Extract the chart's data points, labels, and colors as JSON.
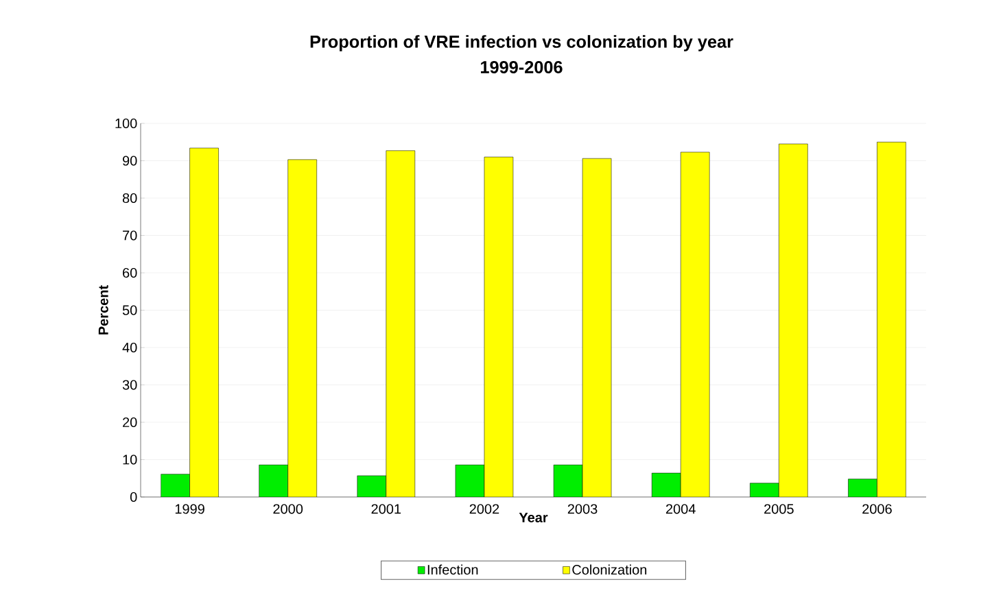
{
  "chart_data": {
    "type": "bar",
    "title": "Proportion of VRE infection vs colonization by year",
    "subtitle": "1999-2006",
    "xlabel": "Year",
    "ylabel": "Percent",
    "categories": [
      "1999",
      "2000",
      "2001",
      "2002",
      "2003",
      "2004",
      "2005",
      "2006"
    ],
    "series": [
      {
        "name": "Infection",
        "color": "#00ee00",
        "values": [
          6.1,
          8.6,
          5.7,
          8.6,
          8.6,
          6.4,
          3.7,
          4.8
        ]
      },
      {
        "name": "Colonization",
        "color": "#ffff00",
        "values": [
          93.4,
          90.3,
          92.7,
          91.0,
          90.6,
          92.3,
          94.5,
          95.0
        ]
      }
    ],
    "ylim": [
      0,
      100
    ],
    "yticks": [
      0,
      10,
      20,
      30,
      40,
      50,
      60,
      70,
      80,
      90,
      100
    ],
    "grid": "y",
    "legend": "bottom"
  }
}
